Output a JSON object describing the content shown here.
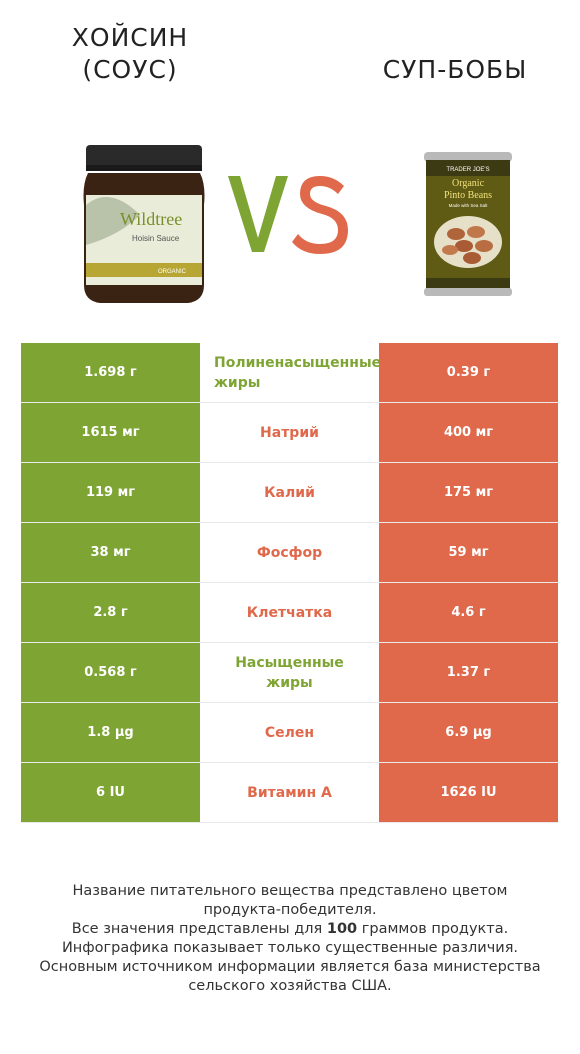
{
  "header": {
    "left_title_line1": "ХОЙСИН",
    "left_title_line2": "(СОУС)",
    "right_title": "СУП-БОБЫ",
    "vs_text": "VS"
  },
  "products": {
    "left": {
      "icon": "hoisin-sauce-jar-icon",
      "brand": "Wildtree",
      "label": "Hoisin Sauce",
      "badge": "ORGANIC"
    },
    "right": {
      "icon": "pinto-beans-can-icon",
      "brand": "TRADER JOE'S",
      "label_line1": "Organic",
      "label_line2": "Pinto Beans",
      "note": "Made with Sea Salt"
    }
  },
  "colors": {
    "left_winner": "#7ea534",
    "right_winner": "#e0694b"
  },
  "rows": [
    {
      "left": "1.698 г",
      "nutrient": "Полиненасыщенные жиры",
      "right": "0.39 г",
      "winner": "left"
    },
    {
      "left": "1615 мг",
      "nutrient": "Натрий",
      "right": "400 мг",
      "winner": "right"
    },
    {
      "left": "119 мг",
      "nutrient": "Калий",
      "right": "175 мг",
      "winner": "right"
    },
    {
      "left": "38 мг",
      "nutrient": "Фосфор",
      "right": "59 мг",
      "winner": "right"
    },
    {
      "left": "2.8 г",
      "nutrient": "Клетчатка",
      "right": "4.6 г",
      "winner": "right"
    },
    {
      "left": "0.568 г",
      "nutrient": "Насыщенные жиры",
      "right": "1.37 г",
      "winner": "left"
    },
    {
      "left": "1.8 µg",
      "nutrient": "Селен",
      "right": "6.9 µg",
      "winner": "right"
    },
    {
      "left": "6 IU",
      "nutrient": "Витамин A",
      "right": "1626 IU",
      "winner": "right"
    }
  ],
  "footer": {
    "line1": "Название питательного вещества представлено цветом",
    "line2": "продукта-победителя.",
    "line3_pre": "Все значения представлены для ",
    "line3_bold": "100",
    "line3_post": " граммов продукта.",
    "line4": "Инфографика показывает только существенные различия.",
    "line5": "Основным источником информации является база министерства",
    "line6": "сельского хозяйства США."
  }
}
